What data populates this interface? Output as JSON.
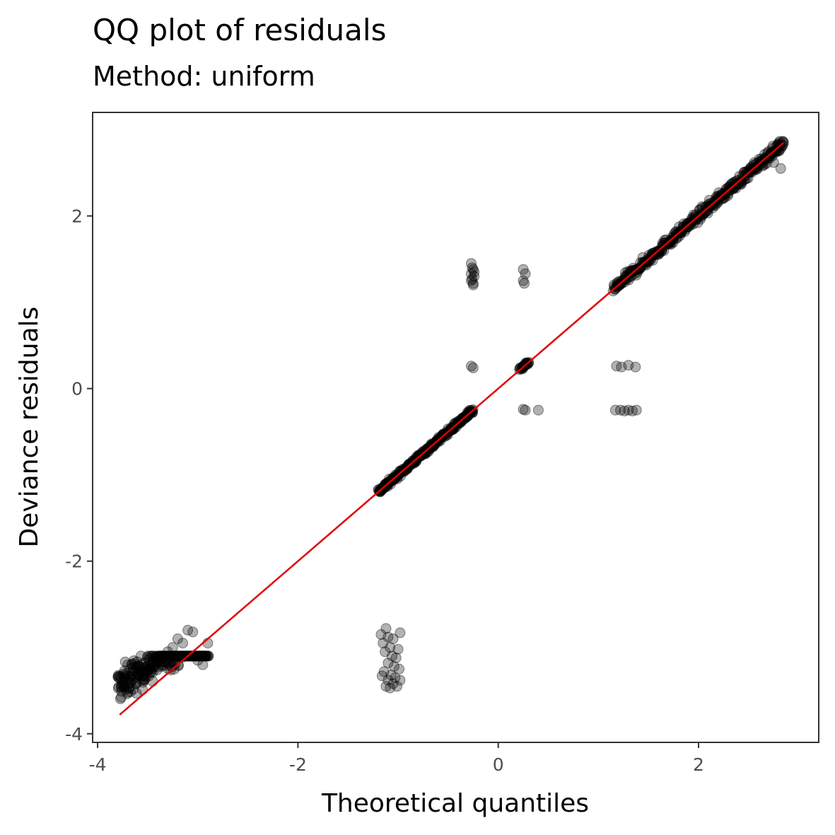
{
  "chart_data": {
    "type": "scatter",
    "title": "QQ plot of residuals",
    "subtitle": "Method: uniform",
    "xlabel": "Theoretical quantiles",
    "ylabel": "Deviance residuals",
    "xlim": [
      -4.05,
      3.2
    ],
    "ylim": [
      -4.1,
      3.2
    ],
    "x_ticks": [
      -4,
      -2,
      0,
      2
    ],
    "x_tick_labels": [
      "-4",
      "-2",
      "0",
      "2"
    ],
    "y_ticks": [
      -4,
      -2,
      0,
      2
    ],
    "y_tick_labels": [
      "-4",
      "-2",
      "0",
      "2"
    ],
    "grid": false,
    "point_color": "#000000",
    "point_opacity": 0.3,
    "reference_line": {
      "color": "#e00000",
      "x": [
        -3.78,
        2.85
      ],
      "y": [
        -3.78,
        2.85
      ]
    },
    "clusters": [
      {
        "x_range": [
          -3.8,
          -2.9
        ],
        "y_center_slope": 0.75,
        "y_offset": -0.6,
        "spread": 0.07,
        "count": 260
      },
      {
        "x_range": [
          -1.2,
          -0.25
        ],
        "on_line": true,
        "spread": 0.015,
        "count": 240
      },
      {
        "x_range": [
          0.22,
          0.3
        ],
        "on_line": true,
        "spread": 0.01,
        "count": 20
      },
      {
        "x_range": [
          1.15,
          2.85
        ],
        "on_line": true,
        "spread": 0.03,
        "count": 340
      }
    ],
    "outlier_points": [
      [
        -1.12,
        -2.78
      ],
      [
        -1.17,
        -2.85
      ],
      [
        -1.1,
        -2.88
      ],
      [
        -1.05,
        -2.9
      ],
      [
        -0.98,
        -2.83
      ],
      [
        -1.15,
        -2.95
      ],
      [
        -1.08,
        -3.0
      ],
      [
        -1.0,
        -3.02
      ],
      [
        -1.13,
        -3.05
      ],
      [
        -1.06,
        -3.1
      ],
      [
        -1.02,
        -3.12
      ],
      [
        -1.1,
        -3.18
      ],
      [
        -1.04,
        -3.22
      ],
      [
        -0.99,
        -3.25
      ],
      [
        -1.14,
        -3.28
      ],
      [
        -1.07,
        -3.32
      ],
      [
        -1.03,
        -3.35
      ],
      [
        -1.1,
        -3.38
      ],
      [
        -1.16,
        -3.33
      ],
      [
        -0.98,
        -3.38
      ],
      [
        -1.05,
        -3.42
      ],
      [
        -1.12,
        -3.45
      ],
      [
        -1.08,
        -3.47
      ],
      [
        -1.01,
        -3.45
      ],
      [
        -0.27,
        1.45
      ],
      [
        -0.25,
        1.38
      ],
      [
        -0.27,
        1.33
      ],
      [
        -0.24,
        1.3
      ],
      [
        -0.26,
        1.27
      ],
      [
        -0.25,
        1.22
      ],
      [
        -0.27,
        1.25
      ],
      [
        -0.24,
        1.35
      ],
      [
        -0.26,
        1.4
      ],
      [
        -0.25,
        1.2
      ],
      [
        -0.27,
        0.26
      ],
      [
        -0.25,
        0.24
      ],
      [
        0.25,
        1.38
      ],
      [
        0.27,
        1.33
      ],
      [
        0.25,
        1.25
      ],
      [
        0.26,
        1.22
      ],
      [
        0.25,
        -0.24
      ],
      [
        0.27,
        -0.25
      ],
      [
        0.4,
        -0.25
      ],
      [
        1.18,
        0.26
      ],
      [
        1.23,
        0.25
      ],
      [
        1.3,
        0.27
      ],
      [
        1.37,
        0.25
      ],
      [
        1.17,
        -0.25
      ],
      [
        1.22,
        -0.25
      ],
      [
        1.26,
        -0.26
      ],
      [
        1.3,
        -0.25
      ],
      [
        1.34,
        -0.26
      ],
      [
        1.38,
        -0.25
      ],
      [
        -3.1,
        -2.8
      ],
      [
        -3.05,
        -2.82
      ],
      [
        -3.2,
        -2.9
      ],
      [
        -2.9,
        -2.95
      ],
      [
        -2.95,
        -3.2
      ],
      [
        -3.0,
        -3.15
      ],
      [
        -3.25,
        -3.0
      ],
      [
        -3.15,
        -2.95
      ],
      [
        -3.3,
        -3.05
      ],
      [
        2.85,
        2.85
      ],
      [
        2.8,
        2.82
      ],
      [
        2.82,
        2.55
      ],
      [
        2.75,
        2.62
      ],
      [
        2.7,
        2.75
      ]
    ]
  }
}
